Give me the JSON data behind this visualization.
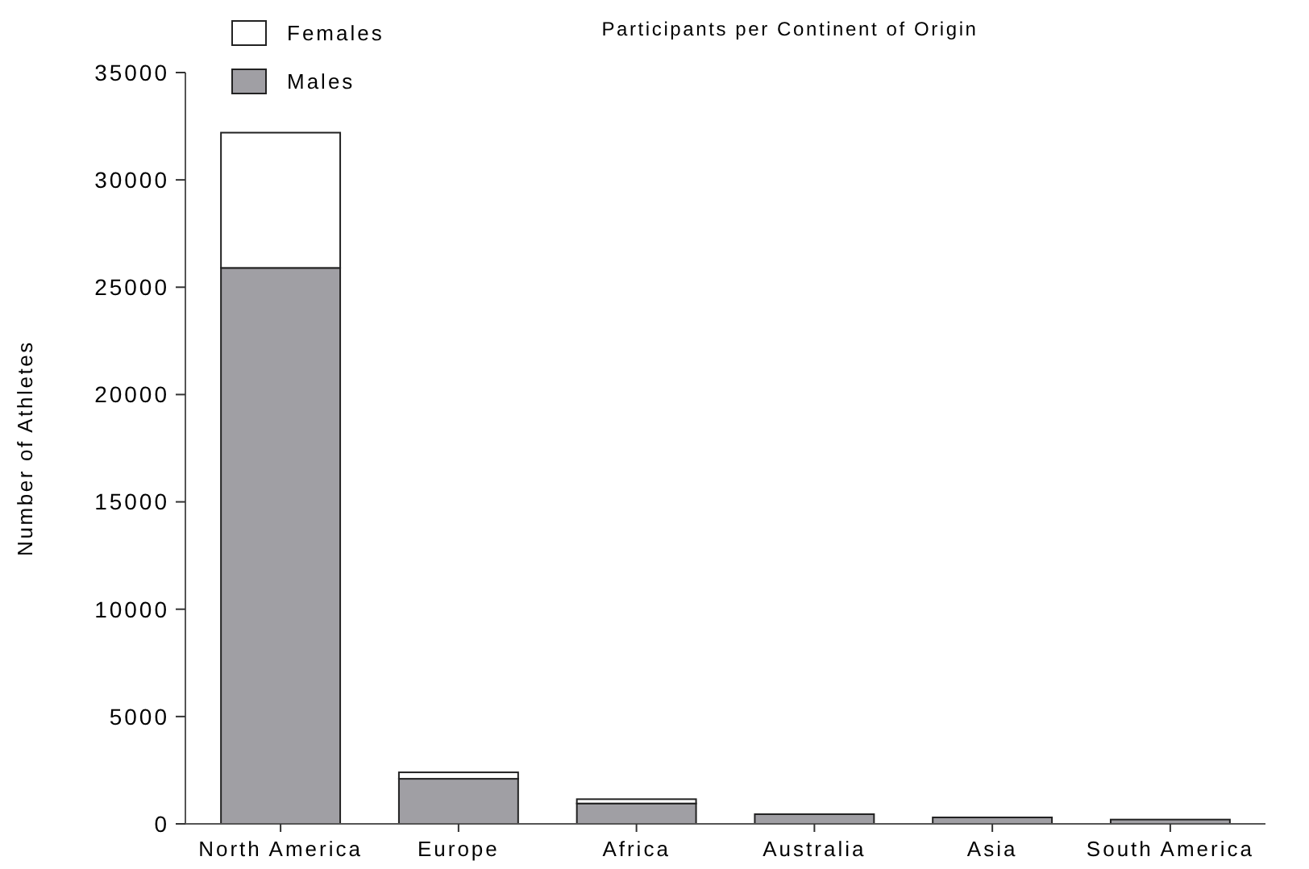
{
  "chart_data": {
    "type": "bar",
    "title": "Participants per Continent of Origin",
    "ylabel": "Number of Athletes",
    "categories": [
      "North America",
      "Europe",
      "Africa",
      "Australia",
      "Asia",
      "South America"
    ],
    "stacked": true,
    "series": [
      {
        "name": "Males",
        "color": "#a09fa4",
        "values": [
          25900,
          2100,
          950,
          450,
          300,
          200
        ]
      },
      {
        "name": "Females",
        "color": "#ffffff",
        "values": [
          6300,
          300,
          200,
          null,
          null,
          null
        ]
      }
    ],
    "ylim": [
      0,
      35000
    ],
    "yticks": [
      0,
      5000,
      10000,
      15000,
      20000,
      25000,
      30000,
      35000
    ],
    "grid": false,
    "legend": "top left"
  }
}
